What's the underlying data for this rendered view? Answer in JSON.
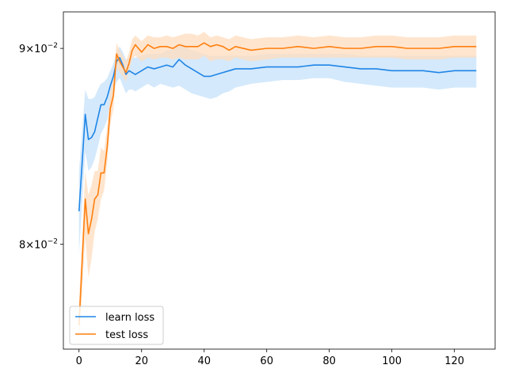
{
  "chart_data": {
    "type": "line",
    "title": "",
    "xlabel": "",
    "ylabel": "",
    "yscale": "log",
    "xlim": [
      -5,
      133
    ],
    "ylim": [
      0.0751,
      0.092
    ],
    "grid": false,
    "legend_position": "lower left",
    "x_ticks": [
      0,
      20,
      40,
      60,
      80,
      100,
      120
    ],
    "x_tick_labels": [
      "0",
      "20",
      "40",
      "60",
      "80",
      "100",
      "120"
    ],
    "y_ticks": [
      {
        "value": 0.08,
        "mantissa": "8",
        "base": "10",
        "exp": "−2"
      },
      {
        "value": 0.09,
        "mantissa": "9",
        "base": "10",
        "exp": "−2"
      }
    ],
    "x": [
      0,
      2,
      3,
      4,
      5,
      6,
      7,
      8,
      9,
      10,
      11,
      12,
      13,
      14,
      15,
      16,
      17,
      18,
      20,
      22,
      24,
      26,
      28,
      30,
      32,
      34,
      36,
      38,
      40,
      42,
      44,
      46,
      48,
      50,
      55,
      60,
      65,
      70,
      75,
      80,
      85,
      90,
      95,
      100,
      105,
      110,
      115,
      120,
      127
    ],
    "series": [
      {
        "name": "learn loss",
        "color": "#1f85e6",
        "band_color": "#c6e1fb",
        "values": [
          0.0816,
          0.0865,
          0.0852,
          0.0853,
          0.0856,
          0.0863,
          0.087,
          0.087,
          0.0874,
          0.088,
          0.0885,
          0.0893,
          0.0895,
          0.0891,
          0.0886,
          0.0888,
          0.0887,
          0.0886,
          0.0888,
          0.089,
          0.0889,
          0.089,
          0.0891,
          0.089,
          0.0894,
          0.0891,
          0.0889,
          0.0887,
          0.0885,
          0.0885,
          0.0886,
          0.0887,
          0.0888,
          0.0889,
          0.0889,
          0.089,
          0.089,
          0.089,
          0.0891,
          0.0891,
          0.089,
          0.0889,
          0.0889,
          0.0888,
          0.0888,
          0.0888,
          0.0887,
          0.0888,
          0.0888
        ],
        "lower": [
          0.0795,
          0.0846,
          0.0836,
          0.0838,
          0.0842,
          0.0848,
          0.0855,
          0.0858,
          0.0862,
          0.087,
          0.0876,
          0.0882,
          0.0884,
          0.088,
          0.0876,
          0.0878,
          0.0878,
          0.0877,
          0.0879,
          0.0881,
          0.0879,
          0.0881,
          0.088,
          0.0879,
          0.088,
          0.0878,
          0.0876,
          0.0875,
          0.0874,
          0.0873,
          0.0874,
          0.0876,
          0.0877,
          0.0879,
          0.0881,
          0.0882,
          0.0883,
          0.0883,
          0.0884,
          0.0884,
          0.0882,
          0.0881,
          0.088,
          0.0879,
          0.0879,
          0.0879,
          0.0878,
          0.0879,
          0.0879
        ],
        "upper": [
          0.0836,
          0.0878,
          0.0873,
          0.0873,
          0.0874,
          0.0878,
          0.0881,
          0.0882,
          0.0884,
          0.0888,
          0.0892,
          0.0898,
          0.0901,
          0.0898,
          0.0894,
          0.0895,
          0.0895,
          0.0895,
          0.0896,
          0.0897,
          0.0897,
          0.0897,
          0.0899,
          0.0899,
          0.0902,
          0.0901,
          0.0899,
          0.0898,
          0.0897,
          0.0896,
          0.0896,
          0.0896,
          0.0896,
          0.0896,
          0.0896,
          0.0897,
          0.0897,
          0.0897,
          0.0897,
          0.0897,
          0.0897,
          0.0896,
          0.0896,
          0.0896,
          0.0896,
          0.0896,
          0.0896,
          0.0896,
          0.0896
        ]
      },
      {
        "name": "test loss",
        "color": "#ff7f0e",
        "band_color": "#ffdcbe",
        "values": [
          0.0762,
          0.0822,
          0.0805,
          0.0812,
          0.0822,
          0.0824,
          0.0835,
          0.0835,
          0.0848,
          0.0868,
          0.0875,
          0.0897,
          0.0893,
          0.089,
          0.0887,
          0.0892,
          0.0899,
          0.0902,
          0.0898,
          0.0902,
          0.09,
          0.0901,
          0.0901,
          0.09,
          0.0902,
          0.0901,
          0.0901,
          0.0901,
          0.0903,
          0.0901,
          0.0902,
          0.0901,
          0.0899,
          0.0901,
          0.0899,
          0.09,
          0.09,
          0.0901,
          0.09,
          0.0901,
          0.09,
          0.09,
          0.0901,
          0.0901,
          0.09,
          0.09,
          0.09,
          0.0901,
          0.0901
        ],
        "lower": [
          0.0752,
          0.0804,
          0.0784,
          0.0793,
          0.0806,
          0.0812,
          0.0822,
          0.0826,
          0.084,
          0.086,
          0.0868,
          0.089,
          0.0887,
          0.0885,
          0.0882,
          0.0888,
          0.0894,
          0.0896,
          0.0893,
          0.0895,
          0.0894,
          0.0895,
          0.0895,
          0.0894,
          0.0895,
          0.0894,
          0.0894,
          0.0894,
          0.0896,
          0.0893,
          0.0894,
          0.0894,
          0.0893,
          0.0895,
          0.0893,
          0.0894,
          0.0895,
          0.0895,
          0.0895,
          0.0895,
          0.0895,
          0.0895,
          0.0895,
          0.0895,
          0.0894,
          0.0894,
          0.0894,
          0.0895,
          0.0895
        ],
        "upper": [
          0.0772,
          0.0836,
          0.0824,
          0.0829,
          0.0836,
          0.0836,
          0.0848,
          0.0846,
          0.0858,
          0.0877,
          0.0884,
          0.0903,
          0.0899,
          0.0896,
          0.0893,
          0.0898,
          0.0905,
          0.0907,
          0.0904,
          0.0907,
          0.0906,
          0.0906,
          0.0907,
          0.0906,
          0.0907,
          0.0908,
          0.0908,
          0.0907,
          0.0909,
          0.0906,
          0.0907,
          0.0906,
          0.0905,
          0.0907,
          0.0905,
          0.0906,
          0.0906,
          0.0907,
          0.0906,
          0.0907,
          0.0906,
          0.0906,
          0.0907,
          0.0907,
          0.0906,
          0.0906,
          0.0906,
          0.0907,
          0.0907
        ]
      }
    ]
  }
}
